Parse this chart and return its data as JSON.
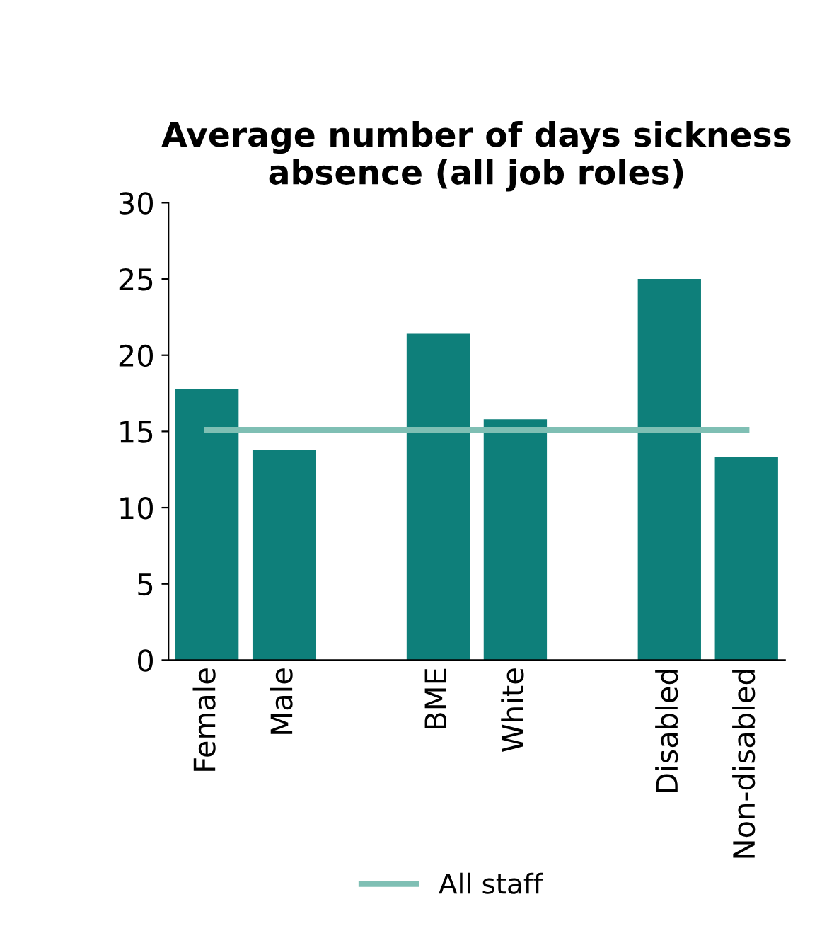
{
  "chart_data": {
    "type": "bar",
    "title": "Average number of days sickness absence (all job roles)",
    "categories": [
      "Female",
      "Male",
      null,
      "BME",
      "White",
      null,
      "Disabled",
      "Non-disabled"
    ],
    "series": [
      {
        "color": "#0e7f7a",
        "values": [
          17.8,
          13.8,
          null,
          21.4,
          15.8,
          null,
          25.0,
          13.3
        ]
      },
      {
        "type": "line",
        "name": "All staff",
        "color": "#7fbfb4",
        "values": [
          15.1,
          15.1,
          15.1,
          15.1,
          15.1,
          15.1,
          15.1,
          15.1
        ]
      }
    ],
    "ylim": [
      0,
      30
    ],
    "yticks": [
      0,
      5,
      10,
      15,
      20,
      25,
      30
    ],
    "grid": false,
    "legend": "bottom"
  }
}
